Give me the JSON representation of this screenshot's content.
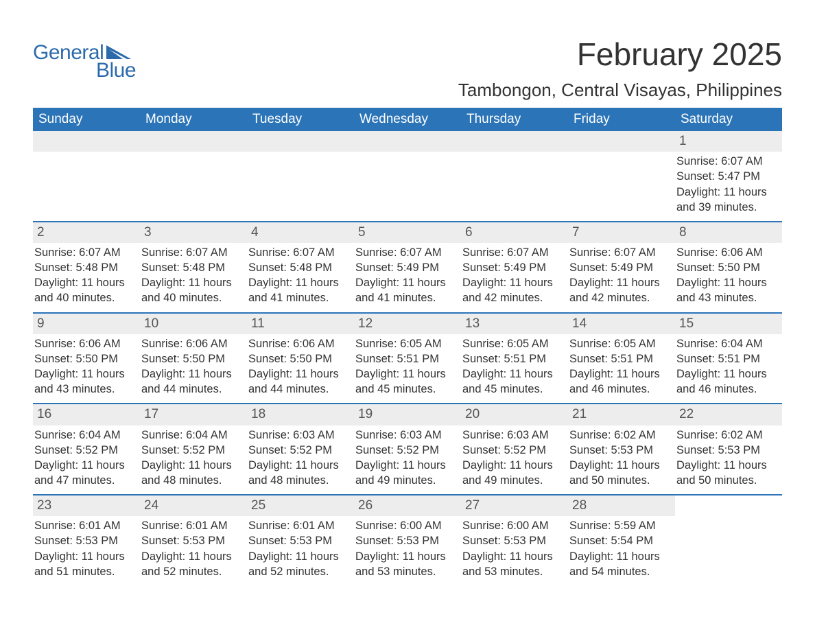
{
  "brand": {
    "general": "General",
    "blue": "Blue"
  },
  "colors": {
    "brand_blue": "#2b6aab",
    "header_blue": "#2b74b8",
    "daynum_bg": "#ededed",
    "text": "#333333",
    "white": "#ffffff"
  },
  "title": "February 2025",
  "location": "Tambongon, Central Visayas, Philippines",
  "weekdays": [
    "Sunday",
    "Monday",
    "Tuesday",
    "Wednesday",
    "Thursday",
    "Friday",
    "Saturday"
  ],
  "weeks": [
    [
      {
        "empty": true
      },
      {
        "empty": true
      },
      {
        "empty": true
      },
      {
        "empty": true
      },
      {
        "empty": true
      },
      {
        "empty": true
      },
      {
        "num": "1",
        "sunrise": "Sunrise: 6:07 AM",
        "sunset": "Sunset: 5:47 PM",
        "dl1": "Daylight: 11 hours",
        "dl2": "and 39 minutes."
      }
    ],
    [
      {
        "num": "2",
        "sunrise": "Sunrise: 6:07 AM",
        "sunset": "Sunset: 5:48 PM",
        "dl1": "Daylight: 11 hours",
        "dl2": "and 40 minutes."
      },
      {
        "num": "3",
        "sunrise": "Sunrise: 6:07 AM",
        "sunset": "Sunset: 5:48 PM",
        "dl1": "Daylight: 11 hours",
        "dl2": "and 40 minutes."
      },
      {
        "num": "4",
        "sunrise": "Sunrise: 6:07 AM",
        "sunset": "Sunset: 5:48 PM",
        "dl1": "Daylight: 11 hours",
        "dl2": "and 41 minutes."
      },
      {
        "num": "5",
        "sunrise": "Sunrise: 6:07 AM",
        "sunset": "Sunset: 5:49 PM",
        "dl1": "Daylight: 11 hours",
        "dl2": "and 41 minutes."
      },
      {
        "num": "6",
        "sunrise": "Sunrise: 6:07 AM",
        "sunset": "Sunset: 5:49 PM",
        "dl1": "Daylight: 11 hours",
        "dl2": "and 42 minutes."
      },
      {
        "num": "7",
        "sunrise": "Sunrise: 6:07 AM",
        "sunset": "Sunset: 5:49 PM",
        "dl1": "Daylight: 11 hours",
        "dl2": "and 42 minutes."
      },
      {
        "num": "8",
        "sunrise": "Sunrise: 6:06 AM",
        "sunset": "Sunset: 5:50 PM",
        "dl1": "Daylight: 11 hours",
        "dl2": "and 43 minutes."
      }
    ],
    [
      {
        "num": "9",
        "sunrise": "Sunrise: 6:06 AM",
        "sunset": "Sunset: 5:50 PM",
        "dl1": "Daylight: 11 hours",
        "dl2": "and 43 minutes."
      },
      {
        "num": "10",
        "sunrise": "Sunrise: 6:06 AM",
        "sunset": "Sunset: 5:50 PM",
        "dl1": "Daylight: 11 hours",
        "dl2": "and 44 minutes."
      },
      {
        "num": "11",
        "sunrise": "Sunrise: 6:06 AM",
        "sunset": "Sunset: 5:50 PM",
        "dl1": "Daylight: 11 hours",
        "dl2": "and 44 minutes."
      },
      {
        "num": "12",
        "sunrise": "Sunrise: 6:05 AM",
        "sunset": "Sunset: 5:51 PM",
        "dl1": "Daylight: 11 hours",
        "dl2": "and 45 minutes."
      },
      {
        "num": "13",
        "sunrise": "Sunrise: 6:05 AM",
        "sunset": "Sunset: 5:51 PM",
        "dl1": "Daylight: 11 hours",
        "dl2": "and 45 minutes."
      },
      {
        "num": "14",
        "sunrise": "Sunrise: 6:05 AM",
        "sunset": "Sunset: 5:51 PM",
        "dl1": "Daylight: 11 hours",
        "dl2": "and 46 minutes."
      },
      {
        "num": "15",
        "sunrise": "Sunrise: 6:04 AM",
        "sunset": "Sunset: 5:51 PM",
        "dl1": "Daylight: 11 hours",
        "dl2": "and 46 minutes."
      }
    ],
    [
      {
        "num": "16",
        "sunrise": "Sunrise: 6:04 AM",
        "sunset": "Sunset: 5:52 PM",
        "dl1": "Daylight: 11 hours",
        "dl2": "and 47 minutes."
      },
      {
        "num": "17",
        "sunrise": "Sunrise: 6:04 AM",
        "sunset": "Sunset: 5:52 PM",
        "dl1": "Daylight: 11 hours",
        "dl2": "and 48 minutes."
      },
      {
        "num": "18",
        "sunrise": "Sunrise: 6:03 AM",
        "sunset": "Sunset: 5:52 PM",
        "dl1": "Daylight: 11 hours",
        "dl2": "and 48 minutes."
      },
      {
        "num": "19",
        "sunrise": "Sunrise: 6:03 AM",
        "sunset": "Sunset: 5:52 PM",
        "dl1": "Daylight: 11 hours",
        "dl2": "and 49 minutes."
      },
      {
        "num": "20",
        "sunrise": "Sunrise: 6:03 AM",
        "sunset": "Sunset: 5:52 PM",
        "dl1": "Daylight: 11 hours",
        "dl2": "and 49 minutes."
      },
      {
        "num": "21",
        "sunrise": "Sunrise: 6:02 AM",
        "sunset": "Sunset: 5:53 PM",
        "dl1": "Daylight: 11 hours",
        "dl2": "and 50 minutes."
      },
      {
        "num": "22",
        "sunrise": "Sunrise: 6:02 AM",
        "sunset": "Sunset: 5:53 PM",
        "dl1": "Daylight: 11 hours",
        "dl2": "and 50 minutes."
      }
    ],
    [
      {
        "num": "23",
        "sunrise": "Sunrise: 6:01 AM",
        "sunset": "Sunset: 5:53 PM",
        "dl1": "Daylight: 11 hours",
        "dl2": "and 51 minutes."
      },
      {
        "num": "24",
        "sunrise": "Sunrise: 6:01 AM",
        "sunset": "Sunset: 5:53 PM",
        "dl1": "Daylight: 11 hours",
        "dl2": "and 52 minutes."
      },
      {
        "num": "25",
        "sunrise": "Sunrise: 6:01 AM",
        "sunset": "Sunset: 5:53 PM",
        "dl1": "Daylight: 11 hours",
        "dl2": "and 52 minutes."
      },
      {
        "num": "26",
        "sunrise": "Sunrise: 6:00 AM",
        "sunset": "Sunset: 5:53 PM",
        "dl1": "Daylight: 11 hours",
        "dl2": "and 53 minutes."
      },
      {
        "num": "27",
        "sunrise": "Sunrise: 6:00 AM",
        "sunset": "Sunset: 5:53 PM",
        "dl1": "Daylight: 11 hours",
        "dl2": "and 53 minutes."
      },
      {
        "num": "28",
        "sunrise": "Sunrise: 5:59 AM",
        "sunset": "Sunset: 5:54 PM",
        "dl1": "Daylight: 11 hours",
        "dl2": "and 54 minutes."
      },
      {
        "empty": true,
        "noshade": true
      }
    ]
  ]
}
